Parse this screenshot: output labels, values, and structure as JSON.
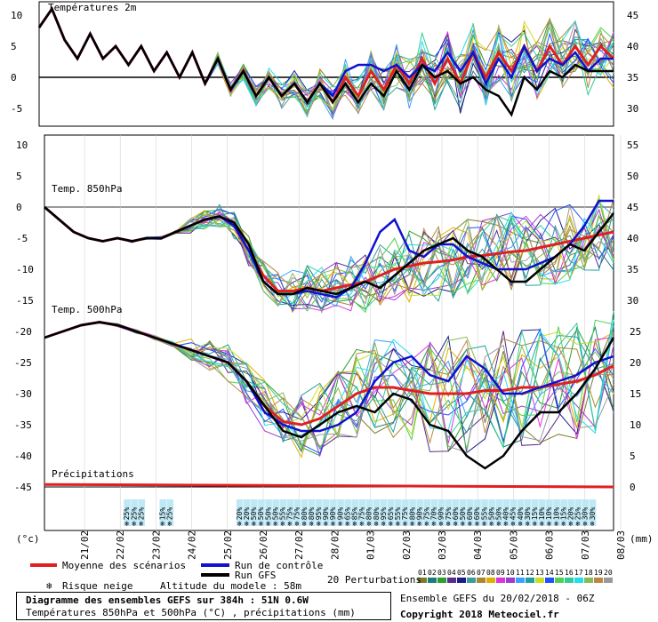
{
  "chart_data": {
    "type": "line",
    "x_dates": [
      "21/02",
      "22/02",
      "23/02",
      "24/02",
      "25/02",
      "26/02",
      "27/02",
      "28/02",
      "01/03",
      "02/03",
      "03/03",
      "04/03",
      "05/03",
      "06/03",
      "07/03",
      "08/03"
    ],
    "units_left": "(°c)",
    "units_right": "(mm)",
    "panels": [
      {
        "title": "Températures 2m",
        "yticks": [
          10,
          5,
          0,
          -5
        ],
        "yticks_right": [
          45,
          40,
          35,
          30
        ]
      },
      {
        "title": "Temp. 850hPa",
        "yticks": [
          10,
          5,
          0,
          -5,
          -10,
          -15
        ],
        "yticks_right": [
          55,
          50,
          45,
          40,
          35,
          30
        ]
      },
      {
        "title": "Temp. 500hPa",
        "yticks": [
          -20,
          -25,
          -30,
          -35,
          -40,
          -45
        ],
        "yticks_right": [
          25,
          20,
          15,
          10,
          5,
          0
        ]
      },
      {
        "title": "Précipitations"
      }
    ],
    "series": [
      {
        "name": "Moyenne des scénarios",
        "color": "#e02020",
        "t2m": [
          8,
          11,
          6,
          3,
          7,
          3,
          5,
          2,
          5,
          1,
          4,
          0,
          4,
          -1,
          3,
          -2,
          1,
          -3,
          0,
          -3,
          -1,
          -4,
          -1,
          -4,
          0,
          -3,
          1,
          -2,
          2,
          -1,
          3,
          -1,
          3,
          -1,
          4,
          0,
          4,
          1,
          5,
          1,
          5,
          2,
          5,
          2,
          5,
          3
        ],
        "t850": [
          0,
          -2,
          -4,
          -5,
          -5.5,
          -5,
          -5.5,
          -5,
          -5,
          -4,
          -3,
          -2,
          -1.5,
          -3,
          -7,
          -11,
          -13.5,
          -13.5,
          -13,
          -13.5,
          -13,
          -12.5,
          -12,
          -11,
          -10,
          -9.5,
          -9,
          -8.8,
          -8.5,
          -8,
          -7.8,
          -7.5,
          -7.2,
          -7,
          -6.5,
          -6,
          -5.5,
          -5,
          -4.5,
          -4
        ],
        "t500": [
          -21,
          -20,
          -19,
          -18.5,
          -19,
          -20,
          -21,
          -22,
          -23,
          -24,
          -25,
          -28,
          -32,
          -34.5,
          -35,
          -34,
          -32,
          -30,
          -29,
          -29,
          -29.5,
          -30,
          -30,
          -30,
          -29.5,
          -29.5,
          -29,
          -29,
          -28.5,
          -28,
          -27,
          -25.5
        ]
      },
      {
        "name": "Run de contrôle",
        "color": "#1010d0",
        "t2m": [
          8,
          11,
          6,
          3,
          7,
          3,
          5,
          2,
          5,
          1,
          4,
          0,
          4,
          -1,
          3,
          -2,
          1,
          -3,
          0,
          -3,
          -1,
          -4,
          -1,
          -3,
          1,
          2,
          2,
          1,
          2,
          0,
          2,
          1,
          4,
          1,
          4,
          -1,
          3,
          0,
          5,
          1,
          3,
          2,
          4,
          1,
          3,
          3
        ],
        "t850": [
          0,
          -2,
          -4,
          -5,
          -5.5,
          -5,
          -5.5,
          -5,
          -5,
          -4,
          -3,
          -2,
          -1.5,
          -3,
          -7,
          -12,
          -14,
          -14,
          -13.5,
          -14,
          -14.5,
          -13,
          -9,
          -4,
          -2,
          -7,
          -8,
          -6,
          -6,
          -8,
          -9,
          -10,
          -10,
          -10,
          -9,
          -8,
          -6,
          -3,
          1,
          1
        ],
        "t500": [
          -21,
          -20,
          -19,
          -18.5,
          -19,
          -20,
          -21,
          -22,
          -23,
          -24,
          -25,
          -28,
          -33,
          -35,
          -36,
          -36,
          -35,
          -33,
          -28,
          -25,
          -24,
          -27,
          -28,
          -24,
          -26,
          -30,
          -30,
          -29,
          -28,
          -27,
          -25,
          -24
        ]
      },
      {
        "name": "Run GFS",
        "color": "#000000",
        "t2m": [
          8,
          11,
          6,
          3,
          7,
          3,
          5,
          2,
          5,
          1,
          4,
          0,
          4,
          -1,
          3,
          -2,
          1,
          -3,
          0,
          -3,
          -1,
          -4,
          -1,
          -4,
          -1,
          -4,
          -1,
          -3,
          1,
          -2,
          2,
          0,
          1,
          -1,
          0,
          -2,
          -3,
          -6,
          0,
          -2,
          1,
          0,
          2,
          1,
          1,
          1
        ],
        "t850": [
          0,
          -2,
          -4,
          -5,
          -5.5,
          -5,
          -5.5,
          -5,
          -5,
          -4,
          -3,
          -2,
          -1.5,
          -2.5,
          -6,
          -12,
          -14,
          -14,
          -13,
          -13.5,
          -14,
          -13,
          -12,
          -13,
          -11,
          -9,
          -7,
          -6,
          -5,
          -7,
          -8,
          -10,
          -12,
          -12,
          -10,
          -8,
          -6,
          -7,
          -4,
          -1
        ],
        "t500": [
          -21,
          -20,
          -19,
          -18.5,
          -19,
          -20,
          -21,
          -22,
          -23,
          -24,
          -25,
          -28,
          -32,
          -36,
          -37,
          -35,
          -33,
          -32,
          -33,
          -30,
          -31,
          -35,
          -36,
          -40,
          -42,
          -40,
          -36,
          -33,
          -33,
          -30,
          -26,
          -21
        ]
      }
    ],
    "snow_risk": [
      {
        "date_index": 1.1,
        "values": [
          "25%",
          "25%",
          "25%"
        ]
      },
      {
        "date_index": 2.1,
        "values": [
          "15%",
          "25%"
        ]
      },
      {
        "date_index": 4.25,
        "values": [
          "20%",
          "20%",
          "50%",
          "50%",
          "50%",
          "50%",
          "55%",
          "75%",
          "75%",
          "80%",
          "80%",
          "95%",
          "90%",
          "90%",
          "90%",
          "65%",
          "85%",
          "75%",
          "80%",
          "80%",
          "95%",
          "65%",
          "55%",
          "75%",
          "80%",
          "90%",
          "75%",
          "70%",
          "90%",
          "75%",
          "60%",
          "50%",
          "60%",
          "60%",
          "55%",
          "50%",
          "50%",
          "40%",
          "45%",
          "40%",
          "30%",
          "15%",
          "10%",
          "10%",
          "10%",
          "15%",
          "20%",
          "25%",
          "30%",
          "30%"
        ]
      }
    ],
    "perturbations": {
      "label": "20 Perturbations",
      "ids": [
        "01",
        "02",
        "03",
        "04",
        "05",
        "06",
        "07",
        "08",
        "09",
        "10",
        "11",
        "12",
        "13",
        "14",
        "15",
        "16",
        "17",
        "18",
        "19",
        "20"
      ],
      "colors": [
        "#7c7c2c",
        "#1c7c7c",
        "#2ca02c",
        "#5c2c8c",
        "#1c1c8c",
        "#3c9c9c",
        "#aa8833",
        "#e0b000",
        "#dd33dd",
        "#9c3cd0",
        "#3ca0ff",
        "#20a0a0",
        "#ccdd22",
        "#2050ff",
        "#50d050",
        "#33cc99",
        "#22ddee",
        "#88bb55",
        "#bb8844",
        "#999999"
      ]
    }
  },
  "legend": {
    "mean": "Moyenne des scénarios",
    "control": "Run de contrôle",
    "gfs": "Run GFS",
    "snow": "Risque neige",
    "altitude": "Altitude du modele : 58m"
  },
  "footer": {
    "title": "Diagramme des ensembles GEFS sur 384h : 51N 0.6W",
    "subtitle": "Températures 850hPa et 500hPa (°C) , précipitations (mm)",
    "run": "Ensemble GEFS du 20/02/2018 - 06Z",
    "copyright": "Copyright 2018 Meteociel.fr"
  }
}
